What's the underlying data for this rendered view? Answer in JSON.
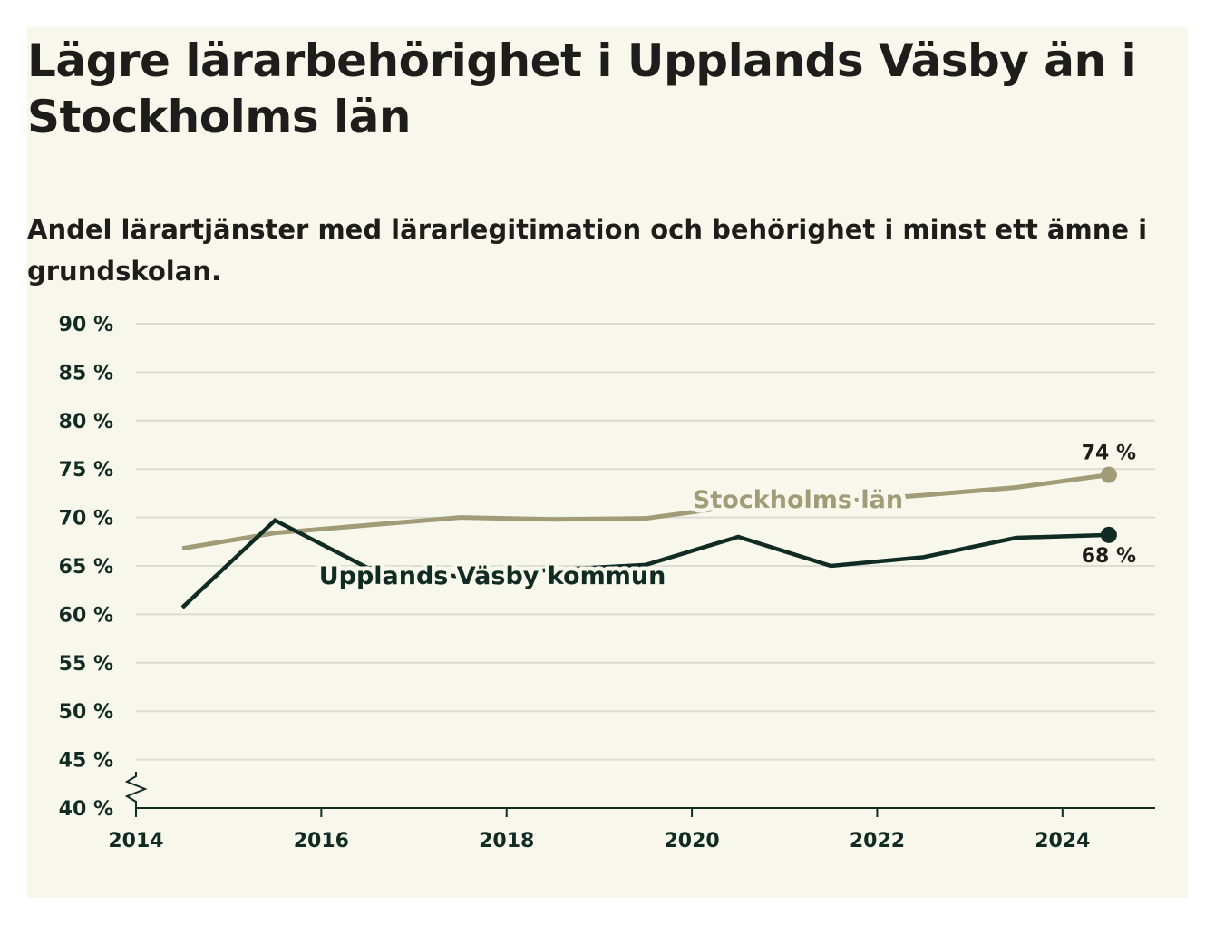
{
  "title": "Lägre lärarbehörighet i Upplands Väsby än i Stockholms län",
  "subtitle": "Andel lärartjänster med lärarlegitimation och behörighet i minst ett ämne i grundskolan.",
  "chart_data": {
    "type": "line",
    "y_ticks": [
      "40 %",
      "45 %",
      "50 %",
      "55 %",
      "60 %",
      "65 %",
      "70 %",
      "75 %",
      "80 %",
      "85 %",
      "90 %"
    ],
    "x_ticks": [
      "2014",
      "2016",
      "2018",
      "2020",
      "2022",
      "2024"
    ],
    "ylim": [
      40,
      90
    ],
    "xlim": [
      2014,
      2025
    ],
    "y_axis_break": true,
    "grid": true,
    "legend": "inline",
    "x": [
      2014.5,
      2015.5,
      2016.5,
      2017.5,
      2018.5,
      2019.5,
      2020.5,
      2021.5,
      2022.5,
      2023.5,
      2024.5
    ],
    "series": [
      {
        "name": "Stockholms län",
        "color": "#a09c78",
        "values": [
          66.8,
          68.4,
          69.2,
          70.0,
          69.8,
          69.9,
          71.2,
          71.6,
          72.3,
          73.1,
          74.4
        ],
        "end_label": "74 %"
      },
      {
        "name": "Upplands Väsby kommun",
        "color": "#0f2b24",
        "values": [
          60.7,
          69.7,
          64.8,
          63.9,
          64.6,
          65.1,
          68.0,
          65.0,
          65.9,
          67.9,
          68.2
        ],
        "end_label": "68 %"
      }
    ]
  }
}
